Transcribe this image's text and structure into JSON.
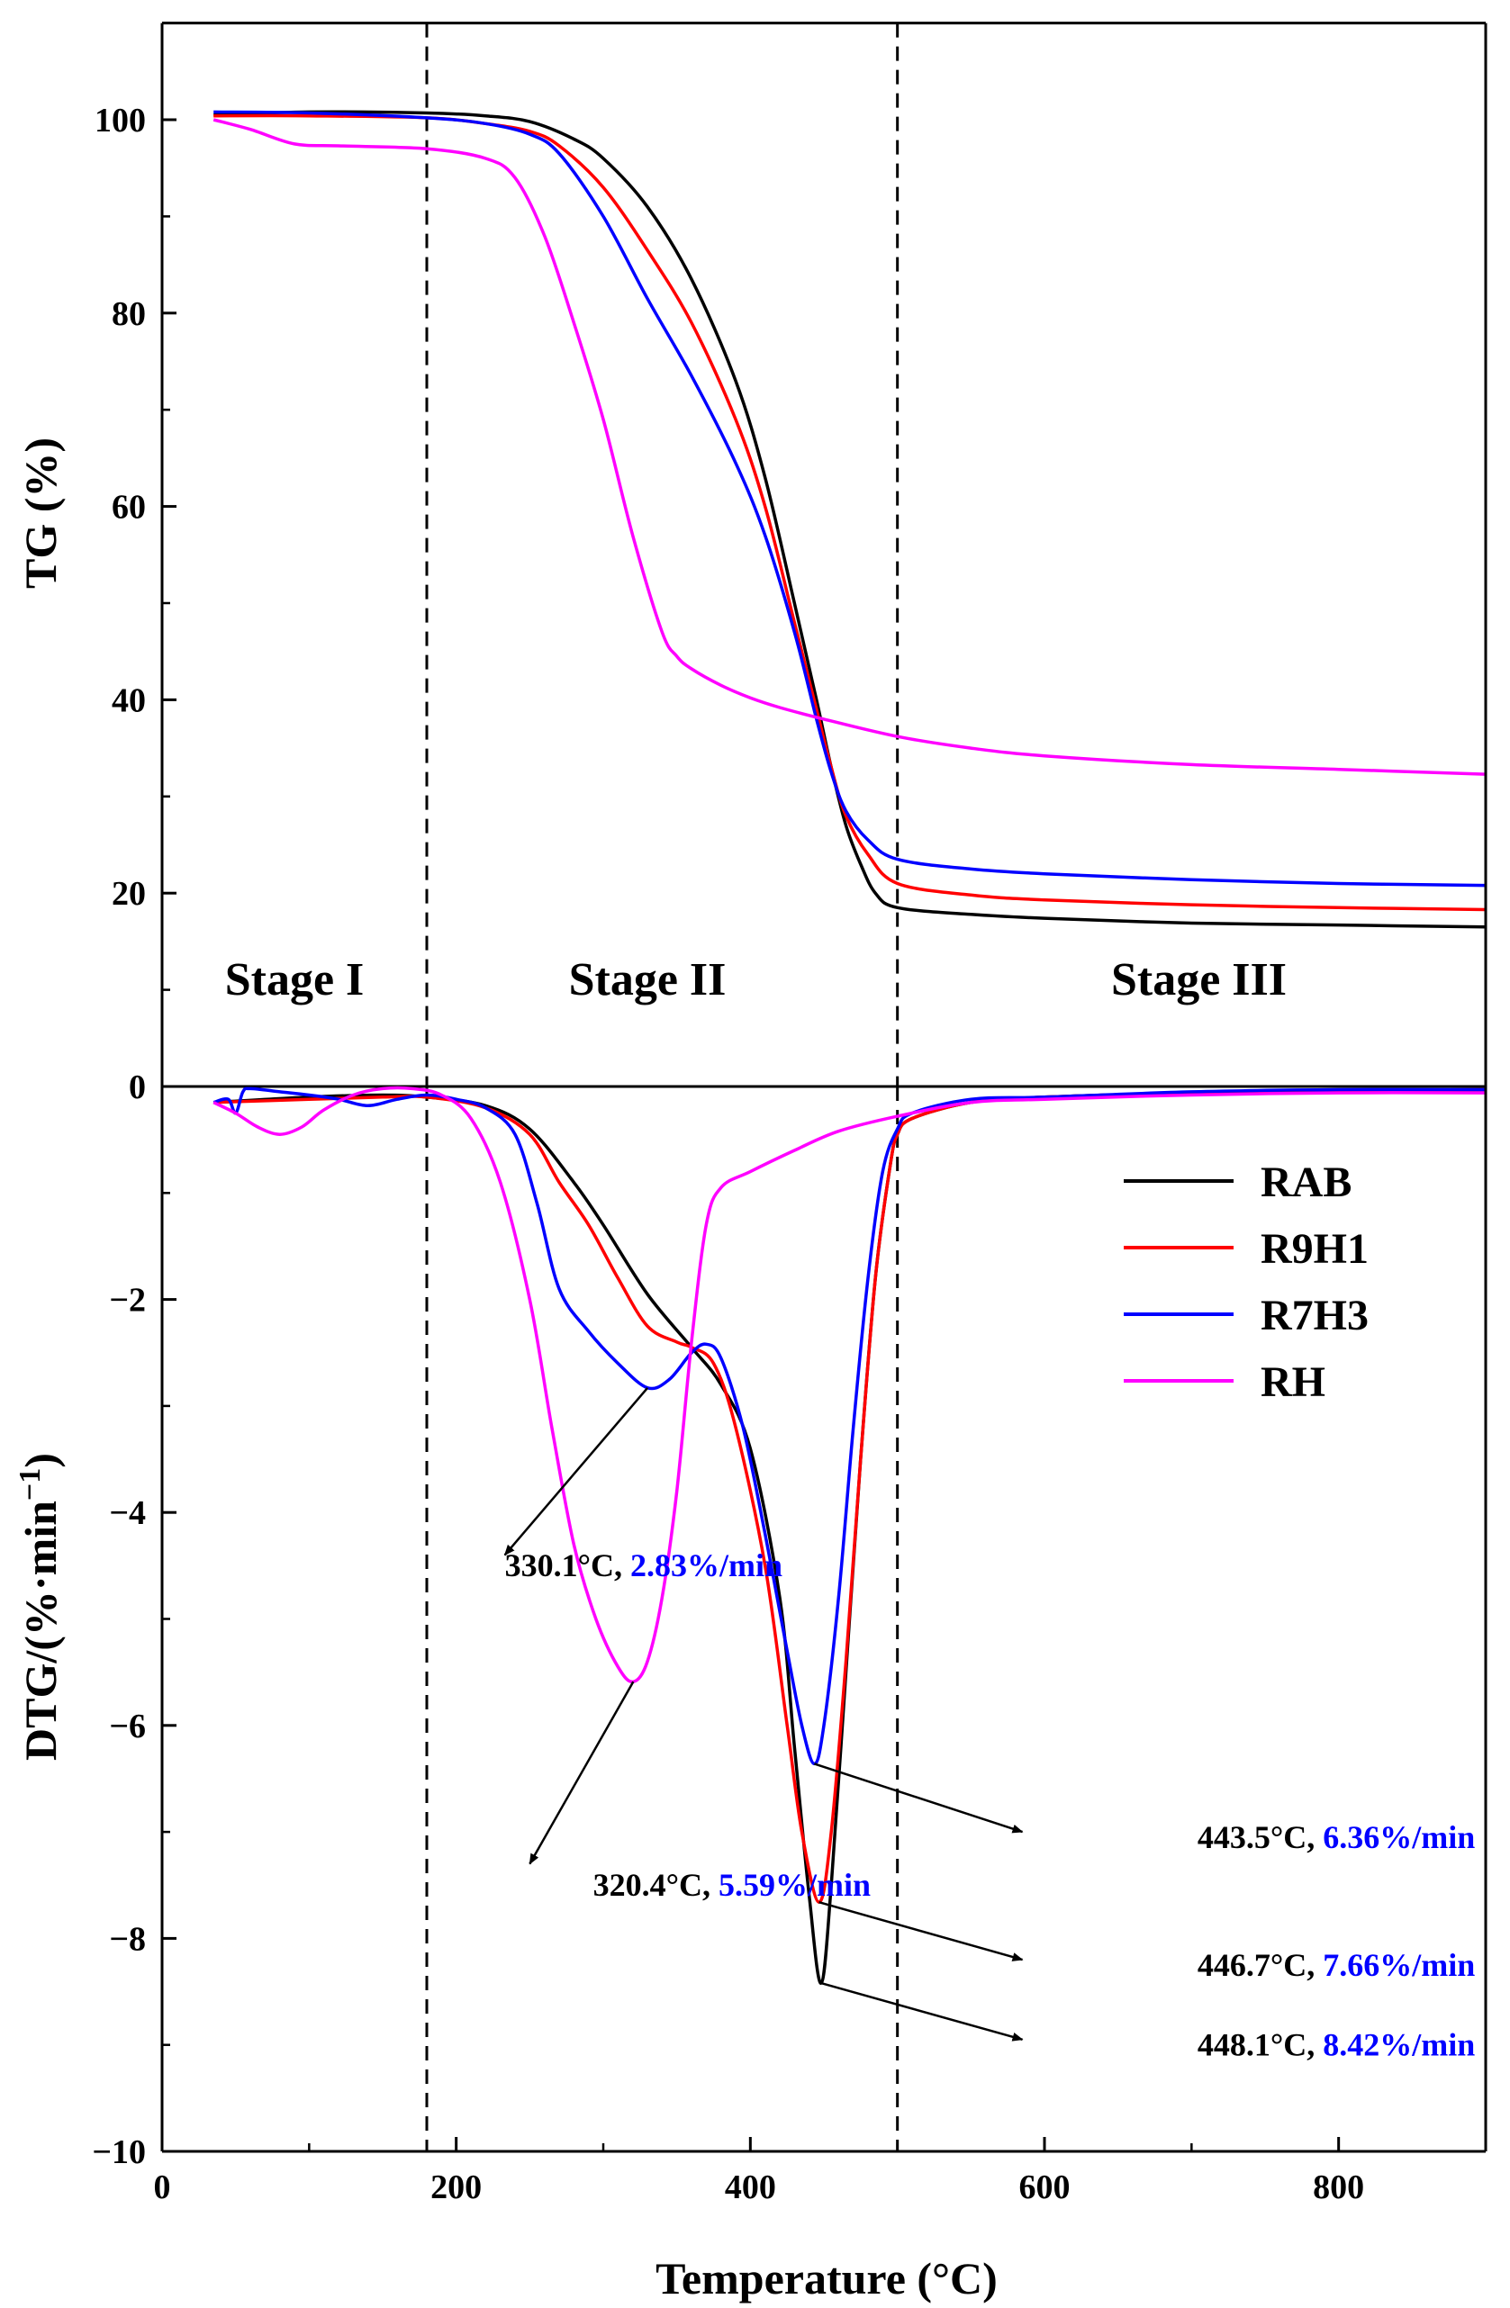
{
  "chart_data": [
    {
      "panel": "top",
      "type": "line",
      "title": "",
      "xlabel": "",
      "ylabel": "TG (%)",
      "xlim": [
        0,
        900
      ],
      "ylim": [
        0,
        110
      ],
      "yticks": [
        0,
        20,
        40,
        60,
        80,
        100
      ],
      "ytick_labels": [
        "0",
        "20",
        "40",
        "60",
        "80",
        "100"
      ],
      "stage_lines_x": [
        180,
        500
      ],
      "stage_labels": [
        {
          "text": "Stage I",
          "x": 90,
          "y": 9.5
        },
        {
          "text": "Stage II",
          "x": 330,
          "y": 9.5
        },
        {
          "text": "Stage III",
          "x": 705,
          "y": 9.5
        }
      ],
      "series": [
        {
          "name": "RAB",
          "color": "#000000",
          "x": [
            35,
            100,
            180,
            220,
            250,
            280,
            300,
            330,
            360,
            390,
            410,
            430,
            445,
            455,
            465,
            475,
            485,
            500,
            550,
            600,
            700,
            800,
            900
          ],
          "y": [
            100.5,
            100.8,
            100.7,
            100.4,
            99.8,
            98,
            96,
            91,
            83.5,
            73,
            63,
            50,
            40,
            33,
            27,
            23,
            20,
            18.5,
            17.8,
            17.4,
            16.9,
            16.7,
            16.5
          ]
        },
        {
          "name": "R9H1",
          "color": "#ff0000",
          "x": [
            35,
            100,
            180,
            220,
            250,
            270,
            300,
            330,
            360,
            390,
            410,
            430,
            445,
            455,
            465,
            480,
            500,
            550,
            600,
            700,
            800,
            900
          ],
          "y": [
            100.4,
            100.4,
            100.2,
            99.6,
            98.8,
            97.3,
            93,
            86.5,
            79,
            69,
            60,
            48,
            39,
            33,
            28,
            24,
            21,
            19.8,
            19.3,
            18.8,
            18.5,
            18.3
          ]
        },
        {
          "name": "R7H3",
          "color": "#0000ff",
          "x": [
            35,
            100,
            180,
            220,
            250,
            270,
            300,
            330,
            360,
            390,
            410,
            430,
            445,
            455,
            465,
            480,
            500,
            550,
            600,
            700,
            800,
            900
          ],
          "y": [
            100.8,
            100.7,
            100.2,
            99.6,
            98.5,
            96.5,
            90,
            81.5,
            73.5,
            64.5,
            57,
            47,
            38,
            32.5,
            28.5,
            25.5,
            23.5,
            22.5,
            22,
            21.4,
            21,
            20.8
          ]
        },
        {
          "name": "RH",
          "color": "#ff00ff",
          "x": [
            35,
            60,
            90,
            120,
            180,
            220,
            240,
            260,
            280,
            300,
            320,
            340,
            350,
            360,
            380,
            400,
            420,
            450,
            500,
            550,
            600,
            700,
            800,
            900
          ],
          "y": [
            100,
            99,
            97.5,
            97.3,
            97,
            96,
            94,
            88,
            79,
            69,
            57,
            47,
            44.5,
            43.2,
            41.5,
            40.2,
            39.2,
            38,
            36.2,
            35,
            34.2,
            33.3,
            32.8,
            32.3
          ]
        }
      ]
    },
    {
      "panel": "bottom",
      "type": "line",
      "title": "",
      "xlabel": "Temperature (°C)",
      "ylabel": "DTG/(%·min−1)",
      "xlim": [
        0,
        900
      ],
      "ylim": [
        -10,
        0
      ],
      "xticks": [
        0,
        200,
        400,
        600,
        800
      ],
      "xtick_labels": [
        "0",
        "200",
        "400",
        "600",
        "800"
      ],
      "yticks": [
        0,
        -2,
        -4,
        -6,
        -8,
        -10
      ],
      "ytick_labels": [
        "0",
        "−2",
        "−4",
        "−6",
        "−8",
        "−10"
      ],
      "stage_lines_x": [
        180,
        500
      ],
      "legend_position": "right",
      "series": [
        {
          "name": "RAB",
          "color": "#000000",
          "x": [
            35,
            100,
            150,
            180,
            220,
            250,
            280,
            300,
            330,
            360,
            380,
            400,
            420,
            430,
            440,
            448.1,
            455,
            465,
            475,
            485,
            495,
            500,
            510,
            550,
            600,
            700,
            800,
            900
          ],
          "y": [
            -0.15,
            -0.1,
            -0.08,
            -0.1,
            -0.18,
            -0.4,
            -0.9,
            -1.3,
            -1.95,
            -2.45,
            -2.8,
            -3.4,
            -4.8,
            -6.2,
            -7.6,
            -8.42,
            -7.5,
            -5.5,
            -3.5,
            -1.8,
            -0.75,
            -0.45,
            -0.3,
            -0.15,
            -0.1,
            -0.06,
            -0.04,
            -0.03
          ]
        },
        {
          "name": "R9H1",
          "color": "#ff0000",
          "x": [
            35,
            100,
            150,
            180,
            220,
            250,
            270,
            290,
            310,
            330,
            350,
            360,
            375,
            390,
            410,
            425,
            435,
            446.7,
            455,
            465,
            475,
            485,
            495,
            500,
            510,
            550,
            600,
            700,
            800,
            900
          ],
          "y": [
            -0.15,
            -0.12,
            -0.1,
            -0.1,
            -0.2,
            -0.45,
            -0.9,
            -1.3,
            -1.8,
            -2.25,
            -2.4,
            -2.45,
            -2.6,
            -3.2,
            -4.5,
            -6.0,
            -7.0,
            -7.66,
            -7.0,
            -5.4,
            -3.5,
            -1.8,
            -0.75,
            -0.45,
            -0.3,
            -0.15,
            -0.1,
            -0.06,
            -0.04,
            -0.03
          ]
        },
        {
          "name": "R7H3",
          "color": "#0000ff",
          "x": [
            35,
            45,
            50,
            55,
            60,
            80,
            100,
            120,
            140,
            160,
            180,
            200,
            220,
            240,
            255,
            270,
            290,
            310,
            330.1,
            345,
            360,
            370,
            380,
            395,
            410,
            425,
            435,
            443.5,
            450,
            460,
            470,
            480,
            490,
            500,
            510,
            550,
            600,
            700,
            800,
            900
          ],
          "y": [
            -0.15,
            -0.12,
            -0.25,
            -0.05,
            -0.02,
            -0.05,
            -0.08,
            -0.12,
            -0.18,
            -0.12,
            -0.08,
            -0.12,
            -0.2,
            -0.45,
            -1.1,
            -1.9,
            -2.3,
            -2.6,
            -2.83,
            -2.75,
            -2.5,
            -2.42,
            -2.55,
            -3.2,
            -4.2,
            -5.3,
            -6.0,
            -6.36,
            -6.0,
            -4.8,
            -3.2,
            -1.8,
            -0.8,
            -0.4,
            -0.25,
            -0.12,
            -0.1,
            -0.05,
            -0.03,
            -0.03
          ]
        },
        {
          "name": "RH",
          "color": "#ff00ff",
          "x": [
            35,
            50,
            65,
            80,
            95,
            110,
            130,
            150,
            170,
            190,
            210,
            230,
            250,
            265,
            280,
            295,
            310,
            320.4,
            330,
            340,
            350,
            360,
            370,
            380,
            400,
            430,
            460,
            500,
            550,
            600,
            700,
            800,
            900
          ],
          "y": [
            -0.15,
            -0.25,
            -0.38,
            -0.45,
            -0.38,
            -0.22,
            -0.08,
            -0.02,
            -0.02,
            -0.08,
            -0.3,
            -0.9,
            -2.0,
            -3.2,
            -4.3,
            -5.0,
            -5.45,
            -5.59,
            -5.4,
            -4.8,
            -3.8,
            -2.4,
            -1.3,
            -0.95,
            -0.8,
            -0.6,
            -0.42,
            -0.28,
            -0.15,
            -0.12,
            -0.08,
            -0.06,
            -0.06
          ]
        }
      ],
      "annotations": [
        {
          "temp_text": "330.1°C, ",
          "rate_text": "2.83%/min",
          "point": [
            330.1,
            -2.83
          ],
          "text_at": [
            233,
            -4.6
          ],
          "arrow_to": [
            233,
            -4.4
          ]
        },
        {
          "temp_text": "320.4°C, ",
          "rate_text": "5.59%/min",
          "point": [
            320.4,
            -5.59
          ],
          "text_at": [
            293,
            -7.6
          ],
          "arrow_to": [
            250,
            -7.3
          ]
        },
        {
          "temp_text": "443.5°C, ",
          "rate_text": "6.36%/min",
          "point": [
            443.5,
            -6.36
          ],
          "text_at": [
            704,
            -7.15
          ],
          "arrow_to": [
            585,
            -7.0
          ]
        },
        {
          "temp_text": "446.7°C, ",
          "rate_text": "7.66%/min",
          "point": [
            446.7,
            -7.66
          ],
          "text_at": [
            704,
            -8.35
          ],
          "arrow_to": [
            585,
            -8.2
          ]
        },
        {
          "temp_text": "448.1°C, ",
          "rate_text": "8.42%/min",
          "point": [
            448.1,
            -8.42
          ],
          "text_at": [
            704,
            -9.1
          ],
          "arrow_to": [
            585,
            -8.95
          ]
        }
      ]
    }
  ],
  "legend": {
    "items": [
      {
        "label": "RAB",
        "color": "#000000"
      },
      {
        "label": "R9H1",
        "color": "#ff0000"
      },
      {
        "label": "R7H3",
        "color": "#0000ff"
      },
      {
        "label": "RH",
        "color": "#ff00ff"
      }
    ]
  },
  "colors": {
    "axis": "#000000",
    "annotation_rate": "#0000ff"
  }
}
